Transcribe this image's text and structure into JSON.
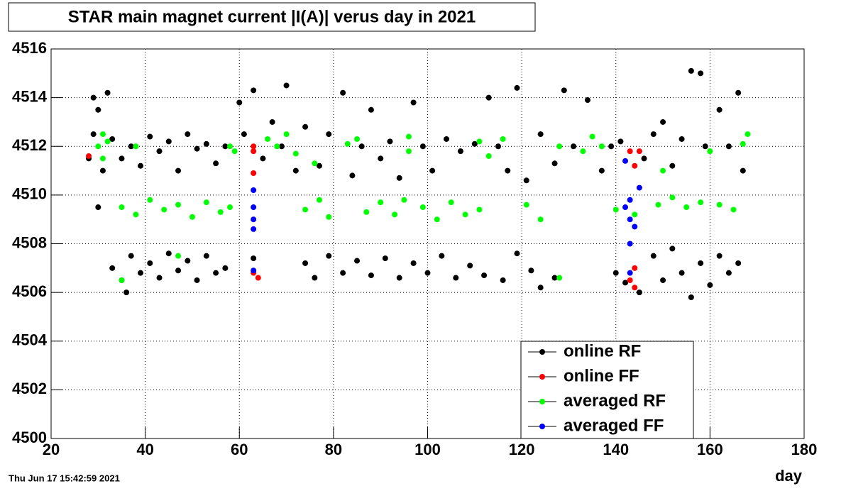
{
  "chart_data": {
    "type": "scatter",
    "title": "STAR main magnet current |I(A)| verus day in 2021",
    "x_label": "day",
    "timestamp": "Thu Jun 17 15:42:59 2021",
    "xlim": [
      20,
      180
    ],
    "xticks": [
      20,
      40,
      60,
      80,
      100,
      120,
      140,
      160,
      180
    ],
    "ylim": [
      4500,
      4516
    ],
    "yticks": [
      4500,
      4502,
      4504,
      4506,
      4508,
      4510,
      4512,
      4514,
      4516
    ],
    "grid": true,
    "legend": "lower right",
    "series": [
      {
        "name": "online RF",
        "color": "#000000",
        "x": [
          28,
          29,
          29,
          30,
          31,
          32,
          33,
          35,
          37,
          39,
          41,
          43,
          45,
          47,
          49,
          51,
          53,
          55,
          57,
          60,
          61,
          63,
          65,
          67,
          69,
          70,
          72,
          74,
          77,
          79,
          82,
          84,
          86,
          88,
          90,
          92,
          94,
          97,
          99,
          101,
          104,
          107,
          110,
          113,
          115,
          117,
          119,
          121,
          124,
          127,
          129,
          131,
          134,
          137,
          139,
          141,
          146,
          148,
          150,
          152,
          154,
          156,
          158,
          159,
          162,
          164,
          166,
          167,
          33,
          35,
          37,
          39,
          41,
          43,
          45,
          47,
          49,
          51,
          53,
          55,
          57,
          63,
          74,
          76,
          79,
          82,
          85,
          88,
          91,
          94,
          97,
          100,
          103,
          106,
          109,
          112,
          116,
          119,
          122,
          124,
          127,
          140,
          142,
          145,
          148,
          150,
          152,
          154,
          156,
          158,
          160,
          162,
          164,
          166,
          36,
          30
        ],
        "values": [
          4511.5,
          4512.5,
          4514,
          4513.5,
          4511,
          4514.2,
          4512.3,
          4511.5,
          4512,
          4511.2,
          4512.4,
          4511.8,
          4512.2,
          4511,
          4512.5,
          4511.9,
          4512.1,
          4511.3,
          4512,
          4513.8,
          4512.5,
          4514.3,
          4511.5,
          4513,
          4512,
          4514.5,
          4511,
          4512.8,
          4511.2,
          4512.5,
          4514.2,
          4510.8,
          4512,
          4513.5,
          4511.5,
          4512.2,
          4510.7,
          4513.8,
          4512,
          4511,
          4512.3,
          4511.8,
          4512.1,
          4514,
          4512,
          4511,
          4514.4,
          4510.6,
          4512.5,
          4511.3,
          4514.3,
          4512,
          4513.9,
          4511,
          4512,
          4512.2,
          4511.5,
          4512.5,
          4513,
          4511.2,
          4512.3,
          4515.1,
          4515,
          4512,
          4513.5,
          4512,
          4514.2,
          4511,
          4507,
          4506.5,
          4507.5,
          4506.8,
          4507.2,
          4506.6,
          4507.6,
          4506.9,
          4507.3,
          4506.5,
          4507.5,
          4506.8,
          4507,
          4507.4,
          4507.2,
          4506.6,
          4507.5,
          4506.8,
          4507.3,
          4506.7,
          4507.4,
          4506.6,
          4507.2,
          4506.8,
          4507.5,
          4506.6,
          4507.1,
          4506.7,
          4506.5,
          4507.6,
          4506.9,
          4506.2,
          4506.6,
          4506.8,
          4506.4,
          4506,
          4507.5,
          4506.5,
          4507.8,
          4506.8,
          4505.8,
          4507.2,
          4506.3,
          4507.5,
          4506.8,
          4507.2,
          4506,
          4509.5
        ]
      },
      {
        "name": "online FF",
        "color": "#ff0000",
        "x": [
          28,
          63,
          63,
          63,
          63,
          64,
          143,
          144,
          145,
          143,
          144,
          144
        ],
        "values": [
          4511.6,
          4512,
          4511.8,
          4510.9,
          4506.8,
          4506.6,
          4511.8,
          4511.2,
          4511.8,
          4506.5,
          4506.2,
          4507
        ]
      },
      {
        "name": "averaged RF",
        "color": "#00ff00",
        "x": [
          30,
          31,
          31,
          32,
          38,
          58,
          59,
          66,
          68,
          70,
          72,
          83,
          85,
          96,
          96,
          111,
          113,
          116,
          128,
          133,
          135,
          137,
          160,
          167,
          168,
          150,
          76,
          35,
          38,
          41,
          44,
          47,
          50,
          53,
          56,
          58,
          74,
          77,
          79,
          87,
          90,
          93,
          95,
          99,
          102,
          105,
          108,
          111,
          121,
          124,
          140,
          144,
          149,
          152,
          155,
          158,
          162,
          165,
          47,
          35,
          128
        ],
        "values": [
          4512,
          4512.5,
          4511.5,
          4512.2,
          4512,
          4512,
          4511.8,
          4512.3,
          4512,
          4512.5,
          4511.7,
          4512.1,
          4512.3,
          4511.8,
          4512.4,
          4512.2,
          4511.6,
          4512.3,
          4512,
          4511.8,
          4512.4,
          4512,
          4511.8,
          4512.1,
          4512.5,
          4511,
          4511.3,
          4509.5,
          4509.2,
          4509.8,
          4509.4,
          4509.6,
          4509.1,
          4509.7,
          4509.3,
          4509.5,
          4509.4,
          4509.8,
          4509.1,
          4509.3,
          4509.7,
          4509.2,
          4509.8,
          4509.5,
          4509,
          4509.7,
          4509.2,
          4509.4,
          4509.6,
          4509,
          4509.4,
          4509.2,
          4509.6,
          4509.9,
          4509.5,
          4509.7,
          4509.6,
          4509.4,
          4507.5,
          4506.5,
          4506.6
        ]
      },
      {
        "name": "averaged FF",
        "color": "#0000ff",
        "x": [
          63,
          63,
          63,
          63,
          63,
          142,
          143,
          144,
          143,
          143,
          142,
          143,
          145
        ],
        "values": [
          4510.2,
          4509.5,
          4509,
          4508.6,
          4506.9,
          4509.5,
          4509,
          4508.7,
          4508,
          4509.8,
          4511.4,
          4506.8,
          4510.3
        ]
      }
    ]
  }
}
